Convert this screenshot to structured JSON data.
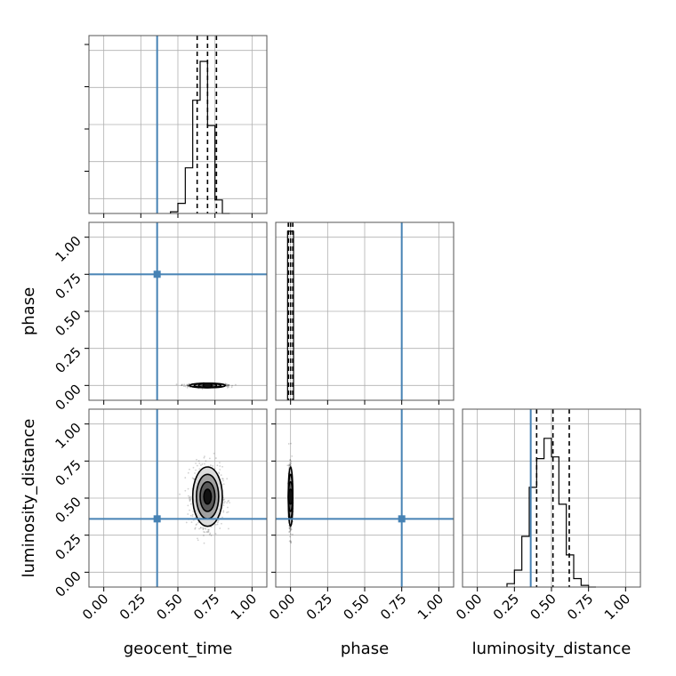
{
  "chart_data": {
    "type": "corner",
    "parameters": [
      "geocent_time",
      "phase",
      "luminosity_distance"
    ],
    "axis_range": [
      -0.1,
      1.1
    ],
    "ticks": [
      0.0,
      0.25,
      0.5,
      0.75,
      1.0
    ],
    "tick_labels": [
      "0.00",
      "0.25",
      "0.50",
      "0.75",
      "1.00"
    ],
    "truths": [
      0.36,
      0.75,
      0.36
    ],
    "truth_color": "#4682b4",
    "grid": true,
    "histograms": [
      {
        "parameter": "geocent_time",
        "bin_edges": [
          0.45,
          0.5,
          0.55,
          0.6,
          0.65,
          0.7,
          0.75,
          0.8,
          0.85
        ],
        "counts": [
          0.01,
          0.06,
          0.27,
          0.67,
          0.9,
          0.52,
          0.08,
          0.0
        ],
        "quantiles": [
          0.63,
          0.7,
          0.76
        ]
      },
      {
        "parameter": "phase",
        "bin_edges": [
          -0.02,
          0.02
        ],
        "counts": [
          1.0
        ],
        "quantiles": [
          -0.015,
          0.0,
          0.015
        ]
      },
      {
        "parameter": "luminosity_distance",
        "bin_edges": [
          0.2,
          0.25,
          0.3,
          0.35,
          0.4,
          0.45,
          0.5,
          0.55,
          0.6,
          0.65,
          0.7,
          0.75,
          0.8
        ],
        "counts": [
          0.02,
          0.1,
          0.3,
          0.59,
          0.76,
          0.88,
          0.77,
          0.49,
          0.19,
          0.05,
          0.01,
          0.0
        ],
        "quantiles": [
          0.4,
          0.51,
          0.62
        ]
      }
    ],
    "posteriors_2d": [
      {
        "x": "geocent_time",
        "y": "phase",
        "center": [
          0.7,
          0.0
        ],
        "spread": [
          0.06,
          0.006
        ]
      },
      {
        "x": "geocent_time",
        "y": "luminosity_distance",
        "center": [
          0.7,
          0.51
        ],
        "spread": [
          0.05,
          0.1
        ]
      },
      {
        "x": "phase",
        "y": "luminosity_distance",
        "center": [
          0.0,
          0.51
        ],
        "spread": [
          0.006,
          0.1
        ]
      }
    ]
  }
}
